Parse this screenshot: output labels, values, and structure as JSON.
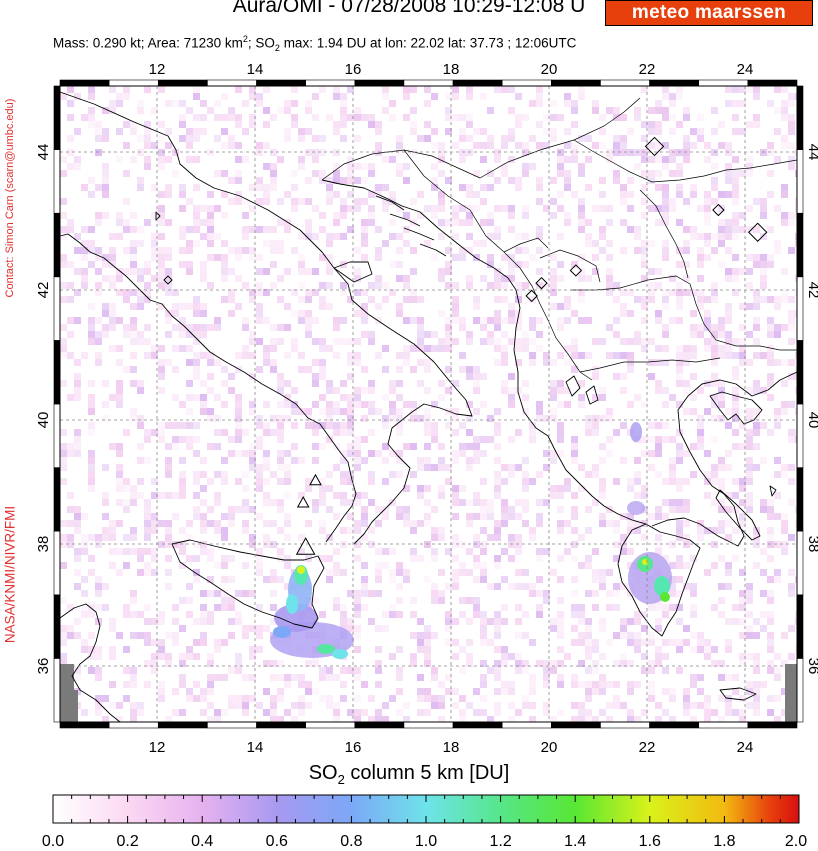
{
  "header": {
    "title": "Aura/OMI - 07/28/2008 10:29-12:08 U",
    "logo_text": "meteo maarssen",
    "stats": {
      "mass": "Mass: 0.290 kt",
      "area_prefix": "Area: 71230 km",
      "area_sup": "2",
      "so2_prefix": "SO",
      "so2_sub": "2",
      "so2_rest": " max: 1.94 DU at lon: 22.02 lat: 37.73 ; 12:06UTC"
    }
  },
  "side_labels": {
    "contact": "Contact: Simon Carn (scarn@umbc.edu)",
    "credits": "NASA/KNMI/NIVR/FMI"
  },
  "map": {
    "lon_range": [
      10,
      25
    ],
    "lat_range": [
      35,
      45
    ],
    "lon_ticks": [
      "12",
      "14",
      "16",
      "18",
      "20",
      "22",
      "24"
    ],
    "lat_ticks": [
      "36",
      "38",
      "40",
      "42",
      "44"
    ],
    "volcano_markers": [
      {
        "lon": 15.0,
        "lat": 37.75,
        "shape": "triangle-large"
      },
      {
        "lon": 15.2,
        "lat": 38.8,
        "shape": "triangle"
      },
      {
        "lon": 14.95,
        "lat": 38.45,
        "shape": "triangle"
      },
      {
        "lon": 22.1,
        "lat": 44.05,
        "shape": "diamond-large"
      },
      {
        "lon": 23.4,
        "lat": 43.05,
        "shape": "diamond"
      },
      {
        "lon": 24.2,
        "lat": 42.7,
        "shape": "diamond-large"
      },
      {
        "lon": 19.8,
        "lat": 41.9,
        "shape": "diamond"
      },
      {
        "lon": 19.6,
        "lat": 41.7,
        "shape": "diamond"
      },
      {
        "lon": 20.5,
        "lat": 42.1,
        "shape": "diamond"
      }
    ]
  },
  "colorbar": {
    "title_prefix": "SO",
    "title_sub": "2",
    "title_rest": " column 5 km [DU]",
    "ticks": [
      "0.0",
      "0.2",
      "0.4",
      "0.6",
      "0.8",
      "1.0",
      "1.2",
      "1.4",
      "1.6",
      "1.8",
      "2.0"
    ],
    "colors": [
      "#ffffff",
      "#fbd8f3",
      "#e6b2ef",
      "#a899f0",
      "#7ca8f7",
      "#6ee3ea",
      "#56e68a",
      "#58e733",
      "#d9f21a",
      "#f2ba11",
      "#e8420c",
      "#d61010"
    ]
  }
}
